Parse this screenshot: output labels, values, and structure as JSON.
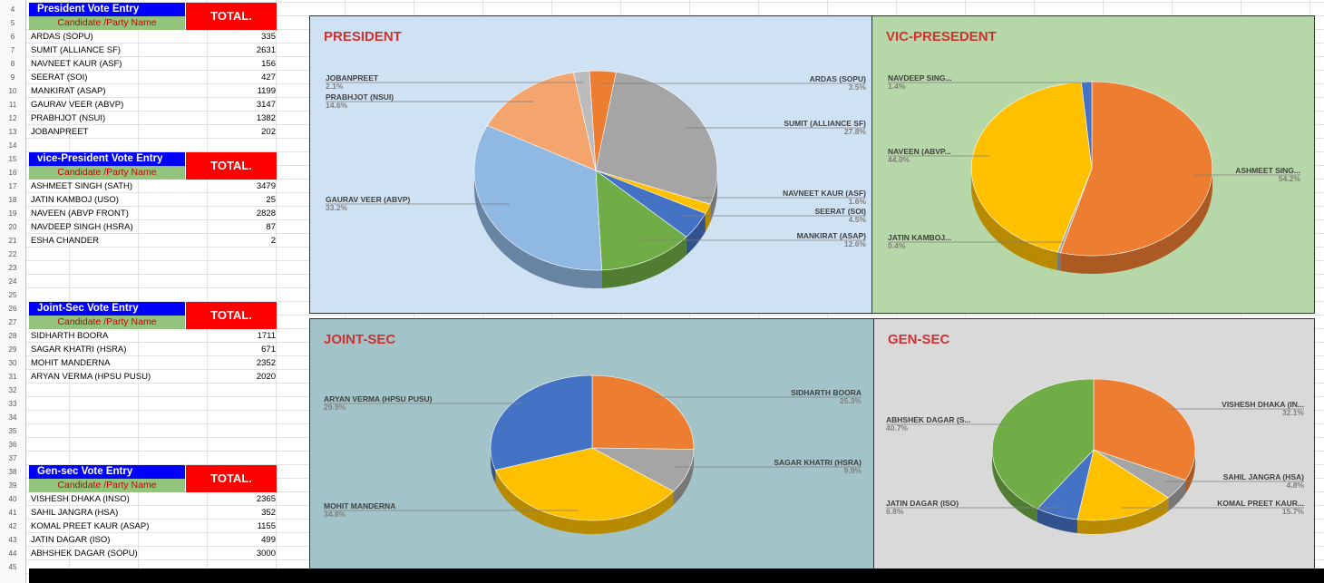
{
  "row_numbers": [
    "4",
    "5",
    "6",
    "7",
    "8",
    "9",
    "10",
    "11",
    "12",
    "13",
    "14",
    "15",
    "16",
    "17",
    "18",
    "19",
    "20",
    "21",
    "22",
    "23",
    "24",
    "25",
    "26",
    "27",
    "28",
    "29",
    "30",
    "31",
    "32",
    "33",
    "34",
    "35",
    "36",
    "37",
    "38",
    "39",
    "40",
    "41",
    "42",
    "43",
    "44",
    "45"
  ],
  "sections": [
    {
      "title": "President Vote Entry",
      "subheader": "Candidate /Party Name",
      "total_label": "TOTAL.",
      "rows": [
        {
          "name": "ARDAS (SOPU)",
          "value": "335"
        },
        {
          "name": "SUMIT  (ALLIANCE SF)",
          "value": "2631"
        },
        {
          "name": "NAVNEET KAUR (ASF)",
          "value": "156"
        },
        {
          "name": "SEERAT (SOI)",
          "value": "427"
        },
        {
          "name": "MANKIRAT (ASAP)",
          "value": "1199"
        },
        {
          "name": "GAURAV VEER (ABVP)",
          "value": "3147"
        },
        {
          "name": "PRABHJOT (NSUI)",
          "value": "1382"
        },
        {
          "name": "JOBANPREET",
          "value": "202"
        }
      ]
    },
    {
      "title": "vice-President Vote Entry",
      "subheader": "Candidate /Party Name",
      "total_label": "TOTAL.",
      "rows": [
        {
          "name": "ASHMEET SINGH (SATH)",
          "value": "3479"
        },
        {
          "name": "JATIN KAMBOJ  (USO)",
          "value": "25"
        },
        {
          "name": "NAVEEN (ABVP FRONT)",
          "value": "2828"
        },
        {
          "name": "NAVDEEP SINGH (HSRA)",
          "value": "87"
        },
        {
          "name": "ESHA CHANDER",
          "value": "2"
        }
      ]
    },
    {
      "title": "Joint-Sec Vote Entry",
      "subheader": "Candidate /Party Name",
      "total_label": "TOTAL.",
      "rows": [
        {
          "name": "SIDHARTH BOORA",
          "value": "1711"
        },
        {
          "name": "SAGAR KHATRI (HSRA)",
          "value": "671"
        },
        {
          "name": "MOHIT MANDERNA",
          "value": "2352"
        },
        {
          "name": "ARYAN VERMA (HPSU PUSU)",
          "value": "2020"
        }
      ]
    },
    {
      "title": "Gen-sec Vote Entry",
      "subheader": "Candidate /Party Name",
      "total_label": "TOTAL.",
      "rows": [
        {
          "name": "VISHESH DHAKA (INSO)",
          "value": "2365"
        },
        {
          "name": "SAHIL JANGRA (HSA)",
          "value": "352"
        },
        {
          "name": "KOMAL PREET KAUR (ASAP)",
          "value": "1155"
        },
        {
          "name": "JATIN DAGAR (ISO)",
          "value": "499"
        },
        {
          "name": "ABHSHEK DAGAR (SOPU)",
          "value": "3000"
        }
      ]
    }
  ],
  "chart_data": [
    {
      "type": "pie",
      "title": "PRESIDENT",
      "background": "#cfe2f3",
      "slices": [
        {
          "label": "ARDAS (SOPU)",
          "pct": "3.5%",
          "value": 3.5,
          "color": "#ed7d31"
        },
        {
          "label": "SUMIT  (ALLIANCE SF)",
          "pct": "27.8%",
          "value": 27.8,
          "color": "#a5a5a5"
        },
        {
          "label": "NAVNEET KAUR (ASF)",
          "pct": "1.6%",
          "value": 1.6,
          "color": "#ffc000"
        },
        {
          "label": "SEERAT (SOI)",
          "pct": "4.5%",
          "value": 4.5,
          "color": "#4472c4"
        },
        {
          "label": "MANKIRAT (ASAP)",
          "pct": "12.6%",
          "value": 12.6,
          "color": "#70ad47"
        },
        {
          "label": "GAURAV VEER (ABVP)",
          "pct": "33.2%",
          "value": 33.2,
          "color": "#8fb9e3"
        },
        {
          "label": "PRABHJOT (NSUI)",
          "pct": "14.6%",
          "value": 14.6,
          "color": "#f4a46d"
        },
        {
          "label": "JOBANPREET",
          "pct": "2.1%",
          "value": 2.1,
          "color": "#bcbcbc"
        }
      ]
    },
    {
      "type": "pie",
      "title": "VIC-PRESEDENT",
      "background": "#b6d7a8",
      "slices": [
        {
          "label": "ASHMEET SING...",
          "pct": "54.2%",
          "value": 54.2,
          "color": "#ed7d31"
        },
        {
          "label": "JATIN KAMBOJ...",
          "pct": "0.4%",
          "value": 0.4,
          "color": "#a5a5a5"
        },
        {
          "label": "NAVEEN (ABVP...",
          "pct": "44.0%",
          "value": 44.0,
          "color": "#ffc000"
        },
        {
          "label": "NAVDEEP SING...",
          "pct": "1.4%",
          "value": 1.4,
          "color": "#4472c4"
        }
      ]
    },
    {
      "type": "pie",
      "title": "JOINT-SEC",
      "background": "#a2c4c9",
      "slices": [
        {
          "label": "SIDHARTH BOORA",
          "pct": "25.3%",
          "value": 25.3,
          "color": "#ed7d31"
        },
        {
          "label": "SAGAR KHATRI (HSRA)",
          "pct": "9.9%",
          "value": 9.9,
          "color": "#a5a5a5"
        },
        {
          "label": "MOHIT MANDERNA",
          "pct": "34.8%",
          "value": 34.8,
          "color": "#ffc000"
        },
        {
          "label": "ARYAN VERMA (HPSU PUSU)",
          "pct": "29.9%",
          "value": 29.9,
          "color": "#4472c4"
        }
      ]
    },
    {
      "type": "pie",
      "title": "GEN-SEC",
      "background": "#d9d9d9",
      "slices": [
        {
          "label": "VISHESH DHAKA (IN...",
          "pct": "32.1%",
          "value": 32.1,
          "color": "#ed7d31"
        },
        {
          "label": "SAHIL JANGRA (HSA)",
          "pct": "4.8%",
          "value": 4.8,
          "color": "#a5a5a5"
        },
        {
          "label": "KOMAL PREET KAUR...",
          "pct": "15.7%",
          "value": 15.7,
          "color": "#ffc000"
        },
        {
          "label": "JATIN DAGAR (ISO)",
          "pct": "6.8%",
          "value": 6.8,
          "color": "#4472c4"
        },
        {
          "label": "ABHSHEK DAGAR (S...",
          "pct": "40.7%",
          "value": 40.7,
          "color": "#70ad47"
        }
      ]
    }
  ]
}
